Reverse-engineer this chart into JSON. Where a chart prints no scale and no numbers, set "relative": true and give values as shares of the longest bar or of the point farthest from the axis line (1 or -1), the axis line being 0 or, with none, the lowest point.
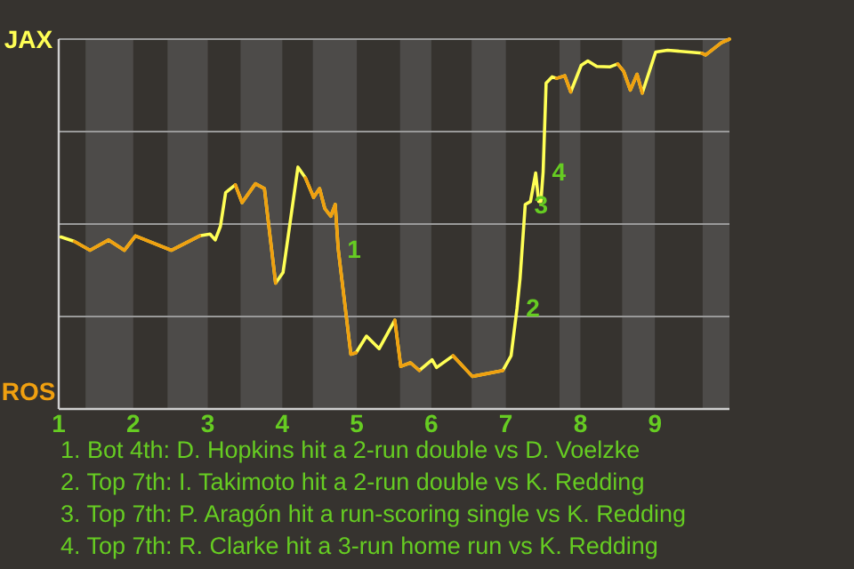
{
  "chart_data": {
    "type": "line",
    "x": [
      1.03,
      1.21,
      1.42,
      1.67,
      1.88,
      2.03,
      2.51,
      2.89,
      3.03,
      3.1,
      3.17,
      3.24,
      3.37,
      3.46,
      3.64,
      3.76,
      3.91,
      4.01,
      4.21,
      4.31,
      4.42,
      4.5,
      4.57,
      4.65,
      4.71,
      4.75,
      4.92,
      4.99,
      5.13,
      5.3,
      5.51,
      5.59,
      5.72,
      5.84,
      6.01,
      6.07,
      6.29,
      6.55,
      6.96,
      7.07,
      7.15,
      7.19,
      7.26,
      7.33,
      7.4,
      7.44,
      7.47,
      7.5,
      7.54,
      7.62,
      7.68,
      7.79,
      7.87,
      8.01,
      8.1,
      8.22,
      8.4,
      8.5,
      8.58,
      8.67,
      8.76,
      8.83,
      9.01,
      9.17,
      9.63,
      9.68,
      9.89,
      10
    ],
    "series": [
      {
        "color": "#ffff55",
        "values": [
          0.465,
          0.453,
          0.429,
          0.457,
          0.429,
          0.468,
          0.429,
          0.468,
          0.473,
          0.457,
          0.494,
          0.585,
          0.606,
          0.558,
          0.609,
          0.596,
          0.34,
          0.369,
          0.654,
          0.625,
          0.572,
          0.596,
          0.542,
          0.521,
          0.553,
          0.433,
          0.148,
          0.152,
          0.197,
          0.163,
          0.24,
          0.115,
          0.125,
          0.104,
          0.133,
          0.112,
          0.144,
          0.088,
          0.104,
          0.144,
          0.273,
          0.352,
          0.553,
          0.561,
          0.638,
          0.561,
          0.561,
          0.641,
          0.881,
          0.898,
          0.894,
          0.901,
          0.857,
          0.929,
          0.941,
          0.926,
          0.925,
          0.933,
          0.913,
          0.862,
          0.905,
          0.854,
          0.965,
          0.97,
          0.962,
          0.957,
          0.99,
          1.0
        ]
      },
      {
        "color": "#f0a010",
        "values": [
          null,
          0.453,
          0.429,
          0.457,
          0.429,
          0.468,
          0.429,
          0.468,
          null,
          null,
          null,
          null,
          0.606,
          0.558,
          0.609,
          0.596,
          0.34,
          null,
          null,
          0.625,
          0.572,
          0.596,
          0.542,
          0.521,
          0.553,
          0.433,
          0.148,
          0.152,
          null,
          null,
          0.24,
          0.115,
          0.125,
          0.104,
          null,
          null,
          0.144,
          0.088,
          0.104,
          null,
          null,
          null,
          null,
          null,
          null,
          null,
          null,
          null,
          null,
          null,
          0.894,
          0.901,
          0.857,
          null,
          null,
          null,
          null,
          0.933,
          0.913,
          0.862,
          0.905,
          0.854,
          null,
          null,
          0.962,
          0.957,
          0.99,
          1.0
        ]
      }
    ],
    "xlim": [
      1,
      10
    ],
    "xticks": [
      1,
      2,
      3,
      4,
      5,
      6,
      7,
      8,
      9
    ],
    "relative": true,
    "grid": "y",
    "marker": "none",
    "bands": [
      {
        "axis": "x",
        "from": 1.36,
        "to": 2,
        "color": "#4d4b49"
      },
      {
        "axis": "x",
        "from": 2.46,
        "to": 3,
        "color": "#4d4b49"
      },
      {
        "axis": "x",
        "from": 3.44,
        "to": 4,
        "color": "#4d4b49"
      },
      {
        "axis": "x",
        "from": 4.41,
        "to": 5,
        "color": "#4d4b49"
      },
      {
        "axis": "x",
        "from": 5.58,
        "to": 6,
        "color": "#4d4b49"
      },
      {
        "axis": "x",
        "from": 6.54,
        "to": 7,
        "color": "#4d4b49"
      },
      {
        "axis": "x",
        "from": 7.72,
        "to": 8,
        "color": "#4d4b49"
      },
      {
        "axis": "x",
        "from": 8.56,
        "to": 9,
        "color": "#4d4b49"
      },
      {
        "axis": "x",
        "from": 9.64,
        "to": 10,
        "color": "#4d4b49"
      }
    ],
    "annotations": [
      "JAX",
      "ROS",
      {
        "text": "1",
        "x": 4.75,
        "y": 0.433
      },
      {
        "text": "2",
        "x": 7.15,
        "y": 0.273
      },
      {
        "text": "3",
        "x": 7.26,
        "y": 0.553
      },
      {
        "text": "4",
        "x": 7.5,
        "y": 0.641
      },
      "1. Bot 4th: D. Hopkins hit a 2-run double vs D. Voelzke",
      "2. Top 7th: I. Takimoto hit a 2-run double vs K. Redding",
      "3. Top 7th: P. Aragón hit a run-scoring single vs K. Redding",
      "4. Top 7th: R. Clarke hit a 3-run home run vs K. Redding"
    ]
  }
}
